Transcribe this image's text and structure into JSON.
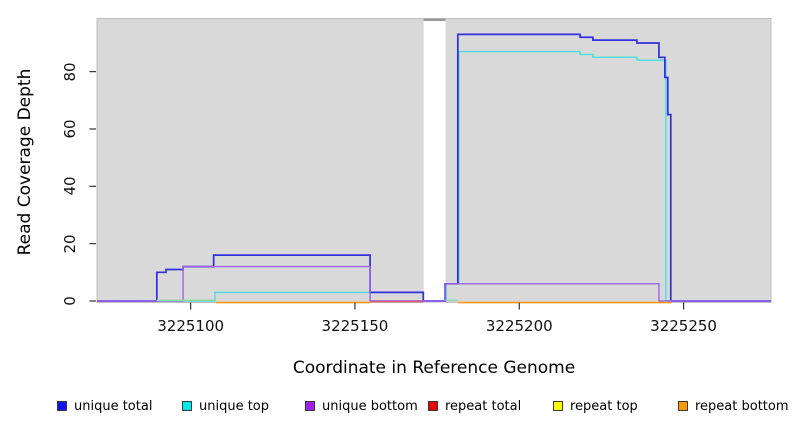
{
  "chart_data": {
    "type": "line",
    "subtype": "step-coverage",
    "title": "",
    "xlabel": "Coordinate in Reference Genome",
    "ylabel": "Read Coverage Depth",
    "xlim": [
      3225071.5,
      3225276.6
    ],
    "ylim": [
      0,
      98
    ],
    "grid": false,
    "panel_bg": "#d9d9d9",
    "panel_border": "#bdbdbd",
    "x_ticks": [
      {
        "value": 3225100,
        "label": "3225100"
      },
      {
        "value": 3225150,
        "label": "3225150"
      },
      {
        "value": 3225200,
        "label": "3225200"
      },
      {
        "value": 3225250,
        "label": "3225250"
      }
    ],
    "y_ticks": [
      {
        "value": 0,
        "label": "0"
      },
      {
        "value": 20,
        "label": "20"
      },
      {
        "value": 40,
        "label": "40"
      },
      {
        "value": 60,
        "label": "60"
      },
      {
        "value": 80,
        "label": "80"
      }
    ],
    "masked_region": {
      "from": 3225170.9,
      "to": 3225177.55,
      "color": "#ffffff",
      "top_bar_color": "#9a9a9a"
    },
    "series": [
      {
        "name": "unique top",
        "color": "#49dce4",
        "legend_color": "#00e8e8",
        "line_visible": true,
        "width": 1.4,
        "points": [
          [
            3225071.5,
            0
          ],
          [
            3225107.4,
            3
          ],
          [
            3225154.6,
            0
          ],
          [
            3225177.8,
            6
          ],
          [
            3225181.6,
            87
          ],
          [
            3225218.5,
            86
          ],
          [
            3225222.4,
            85
          ],
          [
            3225235.8,
            84
          ],
          [
            3225244.6,
            0
          ],
          [
            3225276.6,
            0
          ]
        ]
      },
      {
        "name": "unique total",
        "color": "#3030dd",
        "legend_color": "#1111ee",
        "line_visible": true,
        "width": 1.7,
        "points": [
          [
            3225071.5,
            0
          ],
          [
            3225089.7,
            10
          ],
          [
            3225092.5,
            11
          ],
          [
            3225097.7,
            12
          ],
          [
            3225107,
            16
          ],
          [
            3225154.6,
            3
          ],
          [
            3225170.8,
            0
          ],
          [
            3225177.4,
            6
          ],
          [
            3225181.3,
            93
          ],
          [
            3225218.5,
            92
          ],
          [
            3225222.4,
            91
          ],
          [
            3225235.8,
            90
          ],
          [
            3225242.5,
            85
          ],
          [
            3225244.3,
            78
          ],
          [
            3225245.2,
            65
          ],
          [
            3225246.1,
            0
          ],
          [
            3225276.6,
            0
          ]
        ]
      },
      {
        "name": "unique bottom",
        "color": "#a064e8",
        "legend_color": "#a020f0",
        "line_visible": true,
        "width": 1.4,
        "points": [
          [
            3225071.5,
            0
          ],
          [
            3225097.7,
            12
          ],
          [
            3225154.6,
            0
          ],
          [
            3225177.4,
            6
          ],
          [
            3225242.5,
            0
          ],
          [
            3225276.6,
            0
          ]
        ]
      },
      {
        "name": "repeat total",
        "color": "#e0507d",
        "legend_color": "#e80000",
        "line_visible": false,
        "width": 1.4,
        "points": [
          [
            3225071.5,
            0
          ],
          [
            3225276.6,
            0
          ]
        ]
      },
      {
        "name": "repeat top",
        "color": "#8fd9a8",
        "legend_color": "#ffff00",
        "line_visible": false,
        "width": 1.4,
        "points": [
          [
            3225071.5,
            0
          ],
          [
            3225276.6,
            0
          ]
        ]
      },
      {
        "name": "repeat bottom",
        "color": "#ff9a1e",
        "legend_color": "#ff9900",
        "line_visible": false,
        "width": 1.6,
        "points": [
          [
            3225071.5,
            0
          ],
          [
            3225276.6,
            0
          ]
        ]
      }
    ],
    "baseline_overlays": [
      {
        "series": "repeat top",
        "from": 3225089.7,
        "to": 3225107.7,
        "color": "#8fd9a8",
        "dy": -0.7
      },
      {
        "series": "repeat bottom",
        "from": 3225107.7,
        "to": 3225154.6,
        "color": "#ff9a1e",
        "dy": 1.6
      },
      {
        "series": "repeat total",
        "from": 3225154.6,
        "to": 3225170.8,
        "color": "#e0507d",
        "dy": 0.4
      },
      {
        "series": "repeat top",
        "from": 3225177.6,
        "to": 3225181.3,
        "color": "#8fd9a8",
        "dy": -0.7
      },
      {
        "series": "repeat bottom",
        "from": 3225181.3,
        "to": 3225246.3,
        "color": "#ff9a1e",
        "dy": 1.6
      }
    ],
    "legend": {
      "position": "bottom",
      "items": [
        {
          "label": "unique total"
        },
        {
          "label": "unique top"
        },
        {
          "label": "unique bottom"
        },
        {
          "label": "repeat total"
        },
        {
          "label": "repeat top"
        },
        {
          "label": "repeat bottom"
        }
      ]
    }
  }
}
